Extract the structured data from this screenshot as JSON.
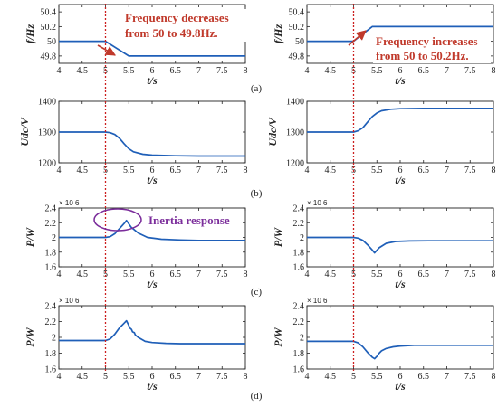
{
  "panel_labels": [
    "(a)",
    "(b)",
    "(c)",
    "(d)"
  ],
  "annotations": {
    "decrease_line1": "Frequency decreases",
    "decrease_line2": "from 50 to 49.8Hz.",
    "increase_line1": "Frequency increases",
    "increase_line2": "from 50 to 50.2Hz.",
    "inertia": "Inertia response"
  },
  "colors": {
    "series": "#1f5fb8",
    "dashed": "#cc1f1f",
    "annotation": "#c0392b",
    "inertia": "#7b2d9b"
  },
  "chart_data": [
    {
      "id": "a-left",
      "type": "line",
      "xlabel": "t/s",
      "ylabel": "f/Hz",
      "xlim": [
        4,
        8
      ],
      "ylim": [
        49.7,
        50.5
      ],
      "xticks": [
        4,
        4.5,
        5,
        5.5,
        6,
        6.5,
        7,
        7.5,
        8
      ],
      "yticks": [
        49.8,
        50,
        50.2,
        50.4
      ],
      "ytick_labels": [
        "49.8",
        "50",
        "50.2",
        "50.4"
      ],
      "vline_x": 5,
      "series": [
        {
          "x": [
            4,
            5,
            5.5,
            8
          ],
          "y": [
            50,
            50,
            49.8,
            49.8
          ]
        }
      ]
    },
    {
      "id": "a-right",
      "type": "line",
      "xlabel": "t/s",
      "ylabel": "f/Hz",
      "xlim": [
        4,
        8
      ],
      "ylim": [
        49.7,
        50.5
      ],
      "xticks": [
        4,
        4.5,
        5,
        5.5,
        6,
        6.5,
        7,
        7.5,
        8
      ],
      "yticks": [
        49.8,
        50,
        50.2,
        50.4
      ],
      "ytick_labels": [
        "49.8",
        "50",
        "50.2",
        "50.4"
      ],
      "vline_x": 5,
      "series": [
        {
          "x": [
            4,
            5,
            5.4,
            8
          ],
          "y": [
            50,
            50,
            50.2,
            50.2
          ]
        }
      ]
    },
    {
      "id": "b-left",
      "type": "line",
      "xlabel": "t/s",
      "ylabel": "Udc/V",
      "xlim": [
        4,
        8
      ],
      "ylim": [
        1200,
        1400
      ],
      "xticks": [
        4,
        4.5,
        5,
        5.5,
        6,
        6.5,
        7,
        7.5,
        8
      ],
      "yticks": [
        1200,
        1300,
        1400
      ],
      "ytick_labels": [
        "1200",
        "1300",
        "1400"
      ],
      "vline_x": 5,
      "series": [
        {
          "x": [
            4,
            5,
            5.1,
            5.2,
            5.3,
            5.4,
            5.5,
            5.6,
            5.8,
            6.0,
            6.5,
            7,
            8
          ],
          "y": [
            1300,
            1300,
            1298,
            1292,
            1280,
            1262,
            1246,
            1236,
            1228,
            1225,
            1223,
            1222,
            1222
          ]
        }
      ]
    },
    {
      "id": "b-right",
      "type": "line",
      "xlabel": "t/s",
      "ylabel": "Udc/V",
      "xlim": [
        4,
        8
      ],
      "ylim": [
        1200,
        1400
      ],
      "xticks": [
        4,
        4.5,
        5,
        5.5,
        6,
        6.5,
        7,
        7.5,
        8
      ],
      "yticks": [
        1200,
        1300,
        1400
      ],
      "ytick_labels": [
        "1200",
        "1300",
        "1400"
      ],
      "vline_x": 5,
      "series": [
        {
          "x": [
            4,
            5,
            5.1,
            5.2,
            5.3,
            5.4,
            5.5,
            5.6,
            5.8,
            6.0,
            6.5,
            7,
            8
          ],
          "y": [
            1300,
            1300,
            1304,
            1314,
            1332,
            1350,
            1362,
            1369,
            1374,
            1376,
            1377,
            1377,
            1377
          ]
        }
      ]
    },
    {
      "id": "c-left",
      "type": "line",
      "xlabel": "t/s",
      "ylabel": "P/W",
      "multiplier": "× 10 6",
      "xlim": [
        4,
        8
      ],
      "ylim": [
        1.6,
        2.4
      ],
      "xticks": [
        4,
        4.5,
        5,
        5.5,
        6,
        6.5,
        7,
        7.5,
        8
      ],
      "yticks": [
        1.6,
        1.8,
        2,
        2.2,
        2.4
      ],
      "ytick_labels": [
        "1.6",
        "1.8",
        "2",
        "2.2",
        "2.4"
      ],
      "vline_x": 5,
      "series": [
        {
          "x": [
            4,
            5,
            5.1,
            5.2,
            5.3,
            5.4,
            5.45,
            5.55,
            5.7,
            5.9,
            6.2,
            6.6,
            7,
            8
          ],
          "y": [
            2.0,
            2.0,
            2.01,
            2.05,
            2.12,
            2.19,
            2.23,
            2.14,
            2.06,
            2.0,
            1.975,
            1.965,
            1.96,
            1.96
          ]
        }
      ]
    },
    {
      "id": "c-right",
      "type": "line",
      "xlabel": "t/s",
      "ylabel": "P/W",
      "multiplier": "× 10 6",
      "xlim": [
        4,
        8
      ],
      "ylim": [
        1.6,
        2.4
      ],
      "xticks": [
        4,
        4.5,
        5,
        5.5,
        6,
        6.5,
        7,
        7.5,
        8
      ],
      "yticks": [
        1.6,
        1.8,
        2,
        2.2,
        2.4
      ],
      "ytick_labels": [
        "1.6",
        "1.8",
        "2",
        "2.2",
        "2.4"
      ],
      "vline_x": 5,
      "series": [
        {
          "x": [
            4,
            5,
            5.1,
            5.2,
            5.3,
            5.4,
            5.45,
            5.55,
            5.7,
            5.9,
            6.2,
            6.6,
            7,
            8
          ],
          "y": [
            2.0,
            2.0,
            1.99,
            1.96,
            1.9,
            1.83,
            1.79,
            1.86,
            1.92,
            1.945,
            1.952,
            1.955,
            1.955,
            1.955
          ]
        }
      ]
    },
    {
      "id": "d-left",
      "type": "line",
      "xlabel": "t/s",
      "ylabel": "P/W",
      "multiplier": "× 10 6",
      "xlim": [
        4,
        8
      ],
      "ylim": [
        1.6,
        2.4
      ],
      "xticks": [
        4,
        4.5,
        5,
        5.5,
        6,
        6.5,
        7,
        7.5,
        8
      ],
      "yticks": [
        1.6,
        1.8,
        2,
        2.2,
        2.4
      ],
      "ytick_labels": [
        "1.6",
        "1.8",
        "2",
        "2.2",
        "2.4"
      ],
      "vline_x": 5,
      "series": [
        {
          "x": [
            4,
            5,
            5.1,
            5.2,
            5.3,
            5.4,
            5.45,
            5.5,
            5.52,
            5.56,
            5.58,
            5.62,
            5.64,
            5.7,
            5.85,
            6.0,
            6.3,
            6.6,
            7,
            8
          ],
          "y": [
            1.96,
            1.96,
            1.98,
            2.04,
            2.12,
            2.18,
            2.21,
            2.15,
            2.12,
            2.1,
            2.07,
            2.06,
            2.03,
            2.0,
            1.95,
            1.935,
            1.925,
            1.92,
            1.92,
            1.92
          ]
        }
      ]
    },
    {
      "id": "d-right",
      "type": "line",
      "xlabel": "t/s",
      "ylabel": "P/W",
      "multiplier": "× 10 6",
      "xlim": [
        4,
        8
      ],
      "ylim": [
        1.6,
        2.4
      ],
      "xticks": [
        4,
        4.5,
        5,
        5.5,
        6,
        6.5,
        7,
        7.5,
        8
      ],
      "yticks": [
        1.6,
        1.8,
        2,
        2.2,
        2.4
      ],
      "ytick_labels": [
        "1.6",
        "1.8",
        "2",
        "2.2",
        "2.4"
      ],
      "vline_x": 5,
      "series": [
        {
          "x": [
            4,
            5,
            5.1,
            5.2,
            5.3,
            5.4,
            5.45,
            5.5,
            5.55,
            5.6,
            5.7,
            5.85,
            6.0,
            6.3,
            6.6,
            7,
            8
          ],
          "y": [
            1.95,
            1.95,
            1.93,
            1.88,
            1.81,
            1.75,
            1.73,
            1.76,
            1.8,
            1.83,
            1.86,
            1.88,
            1.89,
            1.9,
            1.9,
            1.9,
            1.9
          ]
        }
      ]
    }
  ]
}
